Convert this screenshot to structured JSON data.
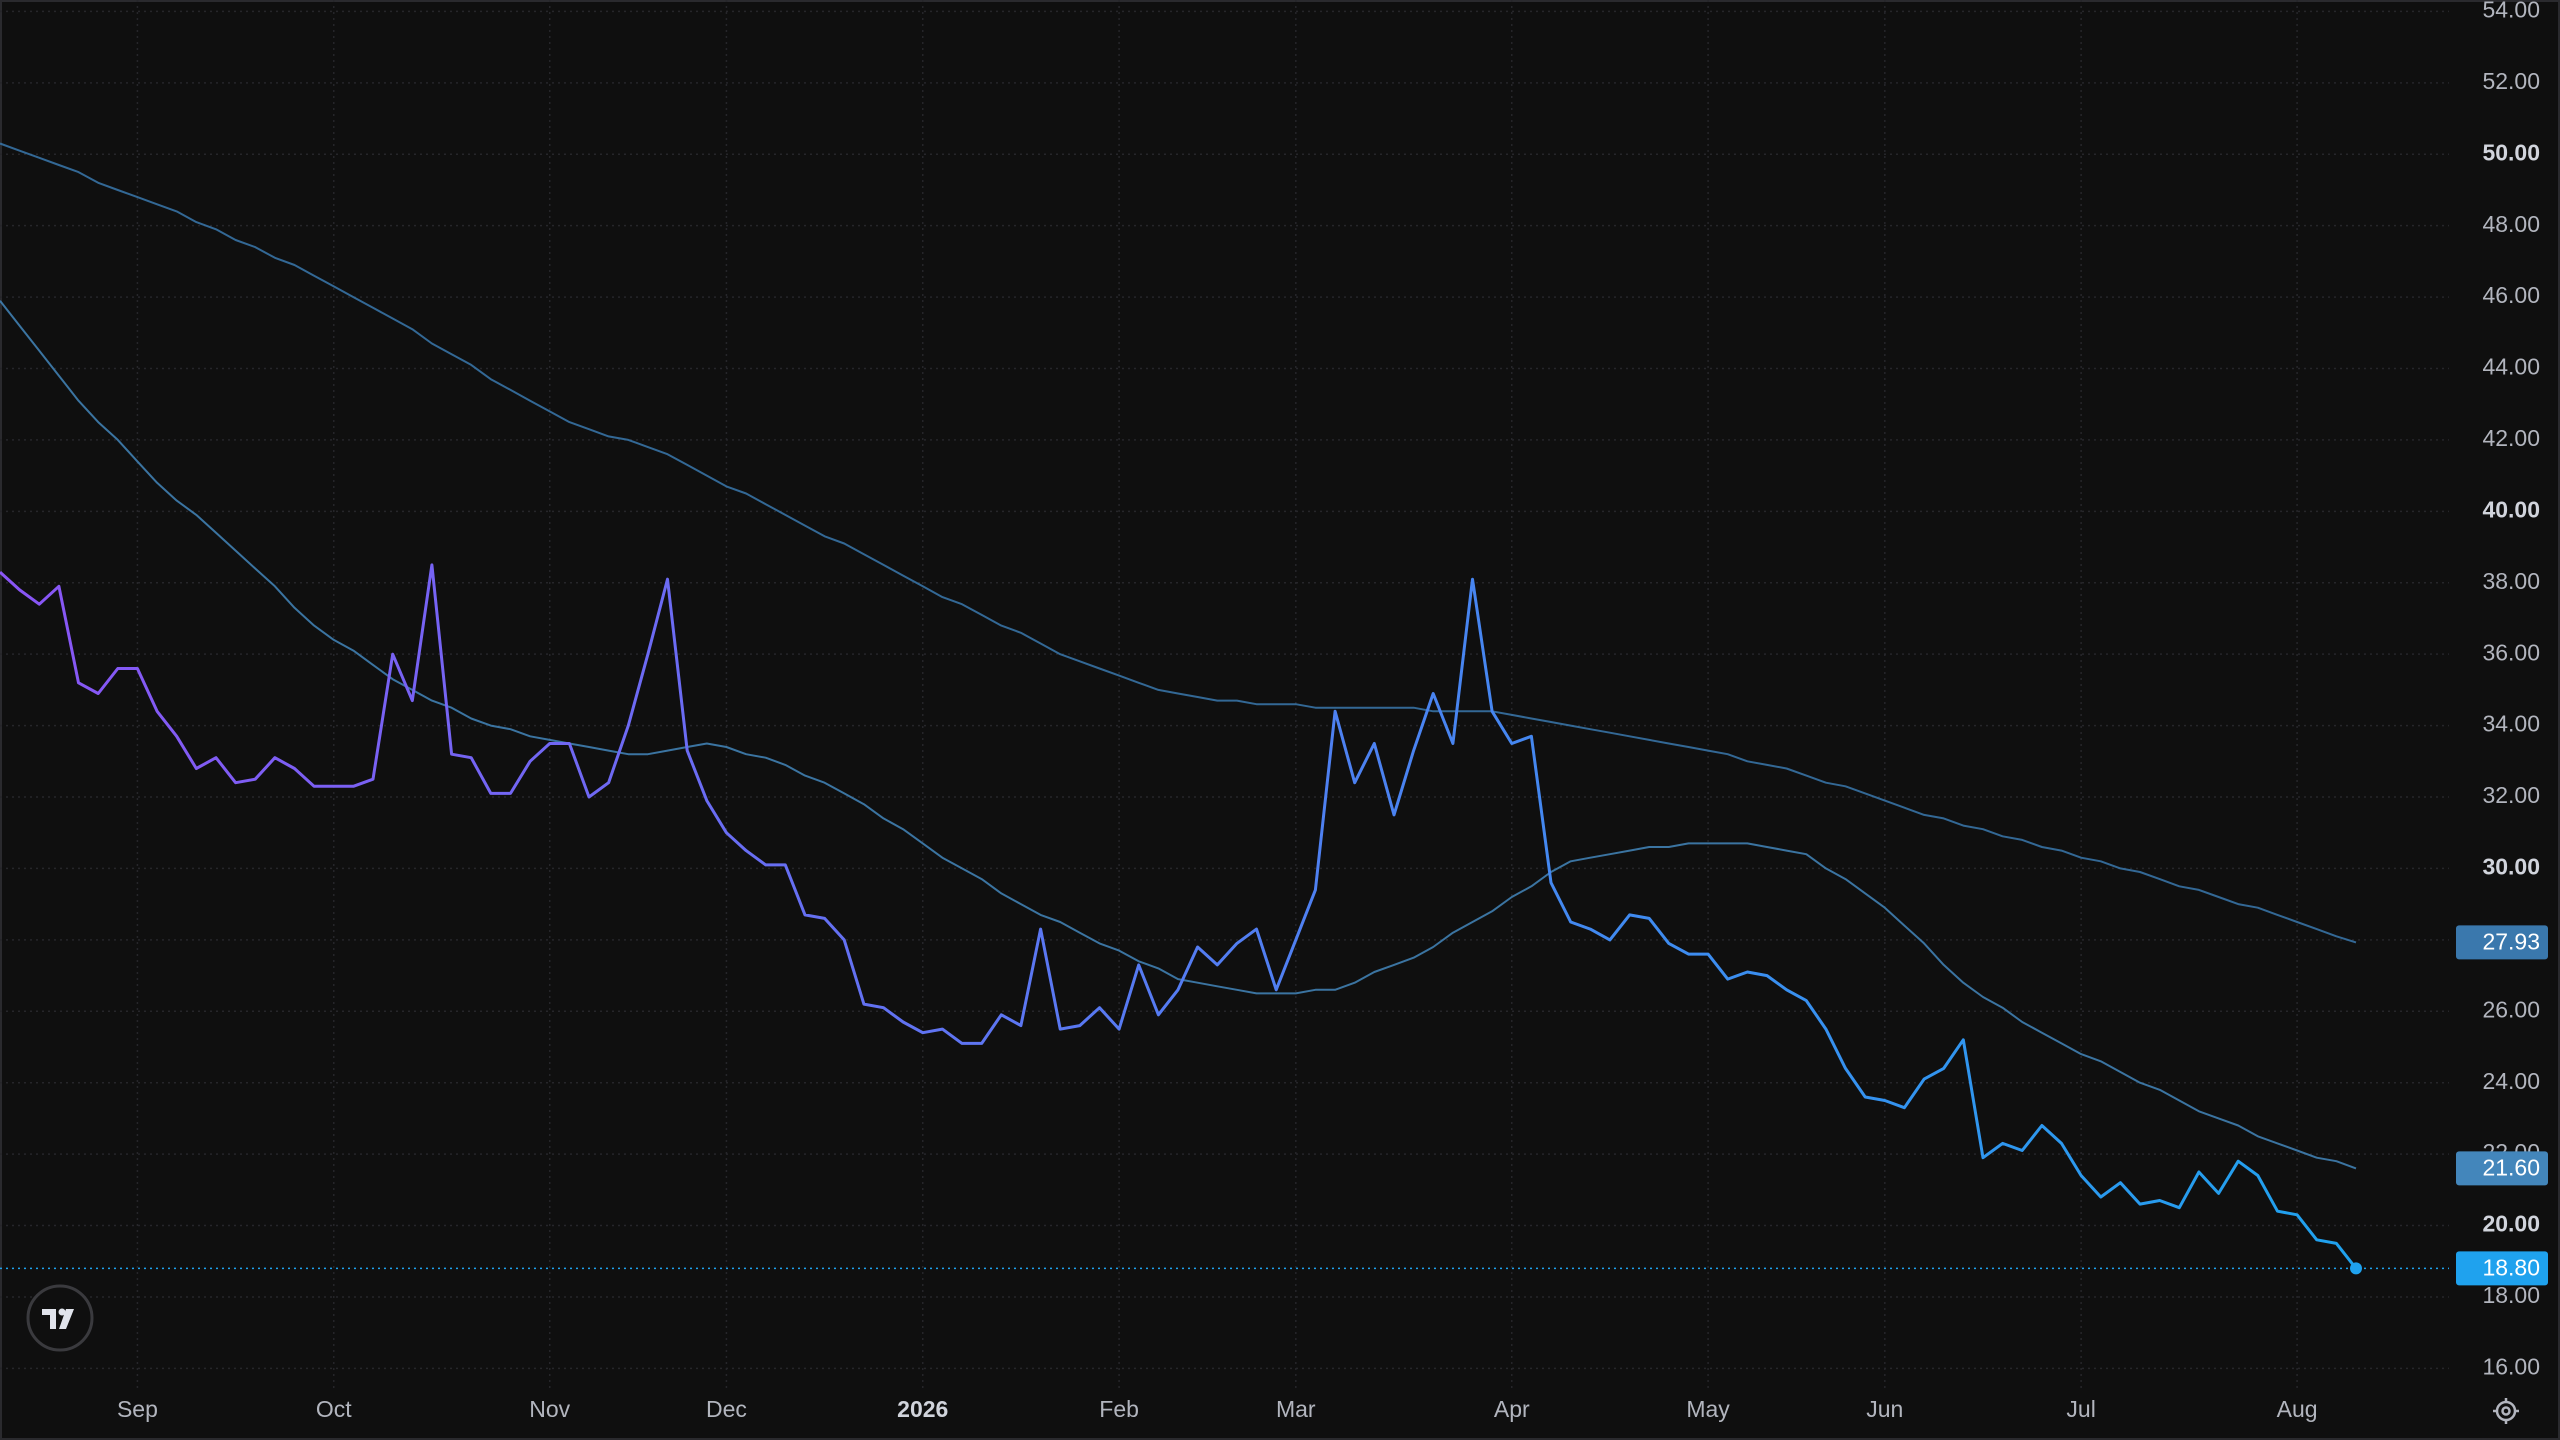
{
  "chart_data": {
    "type": "line",
    "categories": [
      null,
      null,
      null,
      null,
      null,
      null,
      null,
      "Sep",
      null,
      null,
      null,
      null,
      null,
      null,
      null,
      null,
      null,
      "Oct",
      null,
      null,
      null,
      null,
      null,
      null,
      null,
      null,
      null,
      null,
      "Nov",
      null,
      null,
      null,
      null,
      null,
      null,
      null,
      null,
      "Dec",
      null,
      null,
      null,
      null,
      null,
      null,
      null,
      null,
      null,
      "2026",
      null,
      null,
      null,
      null,
      null,
      null,
      null,
      null,
      null,
      "Feb",
      null,
      null,
      null,
      null,
      null,
      null,
      null,
      null,
      "Mar",
      null,
      null,
      null,
      null,
      null,
      null,
      null,
      null,
      null,
      null,
      "Apr",
      null,
      null,
      null,
      null,
      null,
      null,
      null,
      null,
      null,
      "May",
      null,
      null,
      null,
      null,
      null,
      null,
      null,
      null,
      "Jun",
      null,
      null,
      null,
      null,
      null,
      null,
      null,
      null,
      null,
      "Jul",
      null,
      null,
      null,
      null,
      null,
      null,
      null,
      null,
      null,
      null,
      "Aug",
      null,
      null,
      null
    ],
    "series": [
      {
        "color": [
          "#8a55f5",
          "#1fa2ee"
        ],
        "last_label": "18.80",
        "values": [
          38.3,
          37.8,
          37.4,
          37.9,
          35.2,
          34.9,
          35.6,
          35.6,
          34.4,
          33.7,
          32.8,
          33.1,
          32.4,
          32.5,
          33.1,
          32.8,
          32.3,
          32.3,
          32.3,
          32.5,
          36.0,
          34.7,
          38.5,
          33.2,
          33.1,
          32.1,
          32.1,
          33.0,
          33.5,
          33.5,
          32.0,
          32.4,
          34.0,
          36.0,
          38.1,
          33.3,
          31.9,
          31.0,
          30.5,
          30.1,
          30.1,
          28.7,
          28.6,
          28.0,
          26.2,
          26.1,
          25.7,
          25.4,
          25.5,
          25.1,
          25.1,
          25.9,
          25.6,
          28.3,
          25.5,
          25.6,
          26.1,
          25.5,
          27.3,
          25.9,
          26.6,
          27.8,
          27.3,
          27.9,
          28.3,
          26.6,
          28.0,
          29.4,
          34.4,
          32.4,
          33.5,
          31.5,
          33.3,
          34.9,
          33.5,
          38.1,
          34.4,
          33.5,
          33.7,
          29.6,
          28.5,
          28.3,
          28.0,
          28.7,
          28.6,
          27.9,
          27.6,
          27.6,
          26.9,
          27.1,
          27.0,
          26.6,
          26.3,
          25.5,
          24.4,
          23.6,
          23.5,
          23.3,
          24.1,
          24.4,
          25.2,
          21.9,
          22.3,
          22.1,
          22.8,
          22.3,
          21.4,
          20.8,
          21.2,
          20.6,
          20.7,
          20.5,
          21.5,
          20.9,
          21.8,
          21.4,
          20.4,
          20.3,
          19.6,
          19.5,
          18.8
        ]
      },
      {
        "color": "#4386bb",
        "last_label": "21.60",
        "values": [
          45.9,
          45.2,
          44.5,
          43.8,
          43.1,
          42.5,
          42.0,
          41.4,
          40.8,
          40.3,
          39.9,
          39.4,
          38.9,
          38.4,
          37.9,
          37.3,
          36.8,
          36.4,
          36.1,
          35.7,
          35.3,
          35.0,
          34.7,
          34.5,
          34.2,
          34.0,
          33.9,
          33.7,
          33.6,
          33.5,
          33.4,
          33.3,
          33.2,
          33.2,
          33.3,
          33.4,
          33.5,
          33.4,
          33.2,
          33.1,
          32.9,
          32.6,
          32.4,
          32.1,
          31.8,
          31.4,
          31.1,
          30.7,
          30.3,
          30.0,
          29.7,
          29.3,
          29.0,
          28.7,
          28.5,
          28.2,
          27.9,
          27.7,
          27.4,
          27.2,
          26.9,
          26.8,
          26.7,
          26.6,
          26.5,
          26.5,
          26.5,
          26.6,
          26.6,
          26.8,
          27.1,
          27.3,
          27.5,
          27.8,
          28.2,
          28.5,
          28.8,
          29.2,
          29.5,
          29.9,
          30.2,
          30.3,
          30.4,
          30.5,
          30.6,
          30.6,
          30.7,
          30.7,
          30.7,
          30.7,
          30.6,
          30.5,
          30.4,
          30.0,
          29.7,
          29.3,
          28.9,
          28.4,
          27.9,
          27.3,
          26.8,
          26.4,
          26.1,
          25.7,
          25.4,
          25.1,
          24.8,
          24.6,
          24.3,
          24.0,
          23.8,
          23.5,
          23.2,
          23.0,
          22.8,
          22.5,
          22.3,
          22.1,
          21.9,
          21.8,
          21.6
        ]
      },
      {
        "color": "#3a78ad",
        "last_label": "27.93",
        "values": [
          50.3,
          50.1,
          49.9,
          49.7,
          49.5,
          49.2,
          49.0,
          48.8,
          48.6,
          48.4,
          48.1,
          47.9,
          47.6,
          47.4,
          47.1,
          46.9,
          46.6,
          46.3,
          46.0,
          45.7,
          45.4,
          45.1,
          44.7,
          44.4,
          44.1,
          43.7,
          43.4,
          43.1,
          42.8,
          42.5,
          42.3,
          42.1,
          42.0,
          41.8,
          41.6,
          41.3,
          41.0,
          40.7,
          40.5,
          40.2,
          39.9,
          39.6,
          39.3,
          39.1,
          38.8,
          38.5,
          38.2,
          37.9,
          37.6,
          37.4,
          37.1,
          36.8,
          36.6,
          36.3,
          36.0,
          35.8,
          35.6,
          35.4,
          35.2,
          35.0,
          34.9,
          34.8,
          34.7,
          34.7,
          34.6,
          34.6,
          34.6,
          34.5,
          34.5,
          34.5,
          34.5,
          34.5,
          34.5,
          34.4,
          34.4,
          34.4,
          34.4,
          34.3,
          34.2,
          34.1,
          34.0,
          33.9,
          33.8,
          33.7,
          33.6,
          33.5,
          33.4,
          33.3,
          33.2,
          33.0,
          32.9,
          32.8,
          32.6,
          32.4,
          32.3,
          32.1,
          31.9,
          31.7,
          31.5,
          31.4,
          31.2,
          31.1,
          30.9,
          30.8,
          30.6,
          30.5,
          30.3,
          30.2,
          30.0,
          29.9,
          29.7,
          29.5,
          29.4,
          29.2,
          29.0,
          28.9,
          28.7,
          28.5,
          28.3,
          28.1,
          27.93
        ]
      }
    ],
    "ylim": [
      15.45,
      54.32
    ],
    "yticks": [
      {
        "value": 16,
        "label": "16.00"
      },
      {
        "value": 18,
        "label": "18.00"
      },
      {
        "value": 20,
        "label": "20.00"
      },
      {
        "value": 22,
        "label": "22.00"
      },
      {
        "value": 24,
        "label": "24.00"
      },
      {
        "value": 26,
        "label": "26.00"
      },
      {
        "value": 28,
        "label": "28.00"
      },
      {
        "value": 30,
        "label": "30.00"
      },
      {
        "value": 32,
        "label": "32.00"
      },
      {
        "value": 34,
        "label": "34.00"
      },
      {
        "value": 36,
        "label": "36.00"
      },
      {
        "value": 38,
        "label": "38.00"
      },
      {
        "value": 40,
        "label": "40.00"
      },
      {
        "value": 42,
        "label": "42.00"
      },
      {
        "value": 44,
        "label": "44.00"
      },
      {
        "value": 46,
        "label": "46.00"
      },
      {
        "value": 48,
        "label": "48.00"
      },
      {
        "value": 50,
        "label": "50.00"
      },
      {
        "value": 52,
        "label": "52.00"
      },
      {
        "value": 54,
        "label": "54.00"
      }
    ],
    "grid": true
  }
}
